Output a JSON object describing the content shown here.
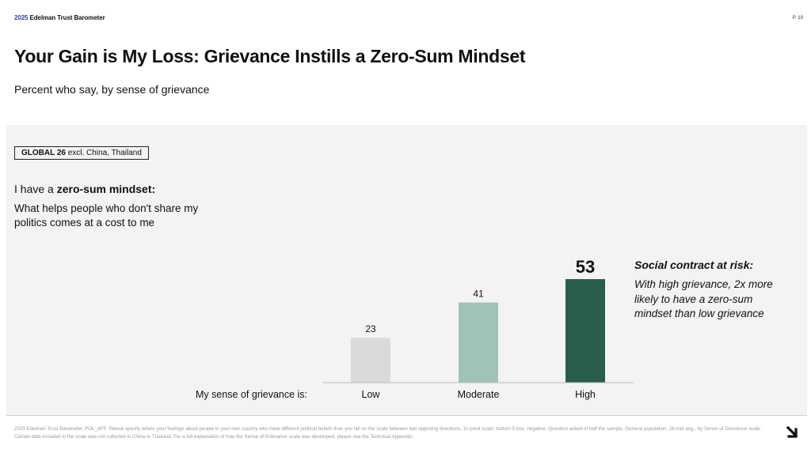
{
  "header": {
    "brand_year": "2025",
    "brand_name": "Edelman Trust Barometer",
    "page_number": "P. 19"
  },
  "title": "Your Gain is My Loss: Grievance Instills a Zero-Sum Mindset",
  "subtitle": "Percent who say, by sense of grievance",
  "tag": {
    "bold": "GLOBAL 26",
    "rest": "excl. China, Thailand"
  },
  "question": {
    "prefix": "I have a ",
    "bold": "zero-sum mindset:",
    "body": "What helps people who don't share my politics comes at a cost to me"
  },
  "chart_data": {
    "type": "bar",
    "categories": [
      "Low",
      "Moderate",
      "High"
    ],
    "values": [
      23,
      41,
      53
    ],
    "colors": [
      "#dadada",
      "#9fc4b6",
      "#2a5e4c"
    ],
    "category_axis_label": "My sense of grievance is:",
    "highlight_index": 2
  },
  "callout": {
    "title": "Social contract at risk:",
    "body": "With high grievance, 2x more likely to have a zero-sum mindset than low grievance"
  },
  "footnote": "2025 Edelman Trust Barometer. POL_AFF. Please specify where your feelings about people in your own country who have different political beliefs than you fall on the scale between two opposing directions. 11-point scale; bottom 5 box, negative. Question asked of half the sample. General population, 26-mkt avg., by Sense of Grievance scale. Certain data included in the scale was not collected in China or Thailand. For a full explanation of how the Sense of Grievance scale was developed, please see the Technical Appendix.",
  "icons": {
    "next": "arrow-down-right-icon"
  }
}
